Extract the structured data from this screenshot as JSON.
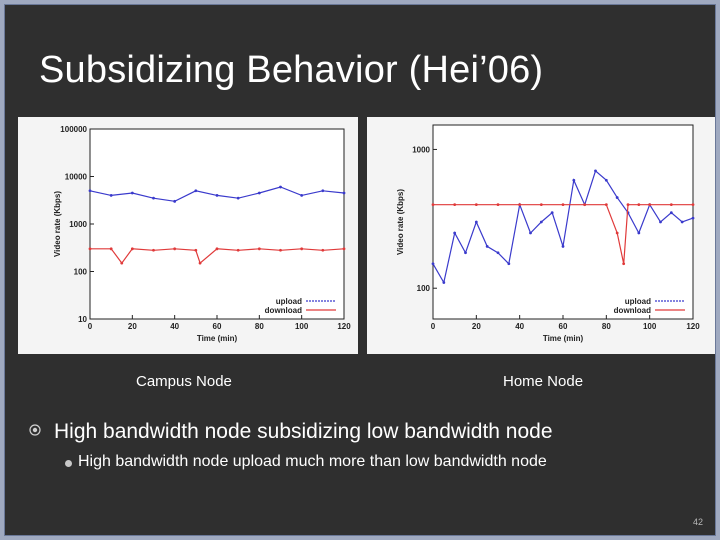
{
  "slide": {
    "title": "Subsidizing Behavior (Hei’06)",
    "page_number": "42",
    "captions": {
      "left": "Campus Node",
      "right": "Home Node"
    },
    "bullets": [
      {
        "text": "High bandwidth node subsidizing low bandwidth node",
        "level": 1
      },
      {
        "text": "High bandwidth node upload much more than low bandwidth node",
        "level": 2
      }
    ]
  },
  "colors": {
    "background": "#2f2f2f",
    "upload": "#3a3acc",
    "download": "#e03a3a"
  },
  "chart_data": [
    {
      "type": "line",
      "title": "",
      "xlabel": "Time (min)",
      "ylabel": "Video rate (Kbps)",
      "yscale": "log",
      "xlim": [
        0,
        120
      ],
      "ylim": [
        10,
        100000
      ],
      "x_ticks": [
        "0",
        "20",
        "40",
        "60",
        "80",
        "100",
        "120"
      ],
      "y_ticks": [
        "10",
        "100",
        "1000",
        "10000",
        "100000"
      ],
      "legend": "bottom-right",
      "grid": false,
      "series": [
        {
          "name": "upload",
          "color": "#3a3acc",
          "x": [
            0,
            10,
            20,
            30,
            40,
            50,
            60,
            70,
            80,
            90,
            100,
            110,
            120
          ],
          "values": [
            5000,
            4000,
            4500,
            3500,
            3000,
            5000,
            4000,
            3500,
            4500,
            6000,
            4000,
            5000,
            4500
          ]
        },
        {
          "name": "download",
          "color": "#e03a3a",
          "x": [
            0,
            10,
            15,
            20,
            30,
            40,
            50,
            52,
            60,
            70,
            80,
            90,
            100,
            110,
            120
          ],
          "values": [
            300,
            300,
            150,
            300,
            280,
            300,
            280,
            150,
            300,
            280,
            300,
            280,
            300,
            280,
            300
          ]
        }
      ]
    },
    {
      "type": "line",
      "title": "",
      "xlabel": "Time (min)",
      "ylabel": "Video rate (Kbps)",
      "yscale": "log",
      "xlim": [
        0,
        120
      ],
      "ylim": [
        60,
        1500
      ],
      "x_ticks": [
        "0",
        "20",
        "40",
        "60",
        "80",
        "100",
        "120"
      ],
      "y_ticks": [
        "100",
        "1000"
      ],
      "legend": "bottom-right",
      "grid": false,
      "series": [
        {
          "name": "upload",
          "color": "#3a3acc",
          "x": [
            0,
            5,
            10,
            15,
            20,
            25,
            30,
            35,
            40,
            45,
            50,
            55,
            60,
            65,
            70,
            75,
            80,
            85,
            90,
            95,
            100,
            105,
            110,
            115,
            120
          ],
          "values": [
            150,
            110,
            250,
            180,
            300,
            200,
            180,
            150,
            400,
            250,
            300,
            350,
            200,
            600,
            400,
            700,
            600,
            450,
            350,
            250,
            400,
            300,
            350,
            300,
            320
          ]
        },
        {
          "name": "download",
          "color": "#e03a3a",
          "x": [
            0,
            10,
            20,
            30,
            40,
            50,
            60,
            70,
            80,
            85,
            88,
            90,
            95,
            100,
            110,
            120
          ],
          "values": [
            400,
            400,
            400,
            400,
            400,
            400,
            400,
            400,
            400,
            250,
            150,
            400,
            400,
            400,
            400,
            400
          ]
        }
      ]
    }
  ]
}
